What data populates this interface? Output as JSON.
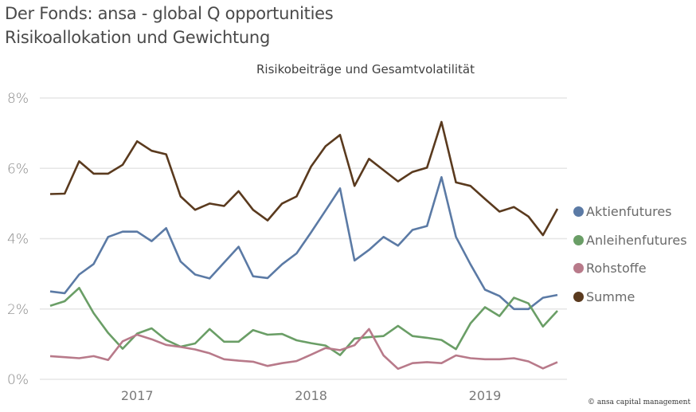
{
  "header": {
    "title_line1": "Der Fonds: ansa - global Q opportunities",
    "title_line2": "Risikoallokation und Gewichtung"
  },
  "footer": {
    "copyright": "© ansa capital management"
  },
  "chart_data": {
    "type": "line",
    "title": "Risikobeiträge und Gesamtvolatilität",
    "xlabel": "",
    "ylabel": "",
    "ylim": [
      0,
      8
    ],
    "y_ticks": [
      "0%",
      "2%",
      "4%",
      "6%",
      "8%"
    ],
    "y_tick_values": [
      0,
      2,
      4,
      6,
      8
    ],
    "x_ticks": [
      "2017",
      "2018",
      "2019"
    ],
    "x_tick_indices": [
      6,
      18,
      30
    ],
    "grid": true,
    "legend_position": "right",
    "x": [
      "2016-07",
      "2016-08",
      "2016-09",
      "2016-10",
      "2016-11",
      "2016-12",
      "2017-01",
      "2017-02",
      "2017-03",
      "2017-04",
      "2017-05",
      "2017-06",
      "2017-07",
      "2017-08",
      "2017-09",
      "2017-10",
      "2017-11",
      "2017-12",
      "2018-01",
      "2018-02",
      "2018-03",
      "2018-04",
      "2018-05",
      "2018-06",
      "2018-07",
      "2018-08",
      "2018-09",
      "2018-10",
      "2018-11",
      "2018-12",
      "2019-01",
      "2019-02",
      "2019-03",
      "2019-04",
      "2019-05",
      "2019-06"
    ],
    "series": [
      {
        "name": "Aktienfutures",
        "color": "#5b7aa5",
        "values": [
          2.5,
          2.45,
          2.98,
          3.28,
          4.05,
          4.2,
          4.2,
          3.93,
          4.3,
          3.35,
          2.98,
          2.87,
          3.32,
          3.77,
          2.93,
          2.88,
          3.27,
          3.58,
          4.18,
          4.8,
          5.43,
          3.38,
          3.68,
          4.05,
          3.8,
          4.25,
          4.36,
          5.75,
          4.05,
          3.27,
          2.55,
          2.37,
          2.0,
          2.0,
          2.32,
          2.4
        ]
      },
      {
        "name": "Anleihenfutures",
        "color": "#6a9e66",
        "values": [
          2.09,
          2.22,
          2.6,
          1.88,
          1.32,
          0.87,
          1.3,
          1.45,
          1.12,
          0.93,
          1.02,
          1.43,
          1.07,
          1.07,
          1.4,
          1.27,
          1.29,
          1.11,
          1.03,
          0.96,
          0.69,
          1.16,
          1.2,
          1.23,
          1.52,
          1.23,
          1.18,
          1.12,
          0.86,
          1.59,
          2.05,
          1.8,
          2.32,
          2.16,
          1.5,
          1.95
        ]
      },
      {
        "name": "Rohstoffe",
        "color": "#b87a8a",
        "values": [
          0.66,
          0.63,
          0.6,
          0.66,
          0.55,
          1.08,
          1.27,
          1.14,
          0.98,
          0.92,
          0.85,
          0.74,
          0.57,
          0.53,
          0.5,
          0.38,
          0.46,
          0.52,
          0.7,
          0.89,
          0.83,
          0.97,
          1.43,
          0.68,
          0.3,
          0.46,
          0.49,
          0.46,
          0.68,
          0.6,
          0.57,
          0.57,
          0.6,
          0.51,
          0.31,
          0.49
        ]
      },
      {
        "name": "Summe",
        "color": "#5a3a1e",
        "values": [
          5.27,
          5.28,
          6.2,
          5.85,
          5.85,
          6.1,
          6.77,
          6.5,
          6.4,
          5.2,
          4.82,
          5.0,
          4.93,
          5.35,
          4.82,
          4.52,
          5.0,
          5.2,
          6.05,
          6.63,
          6.95,
          5.5,
          6.27,
          5.95,
          5.63,
          5.9,
          6.02,
          7.32,
          5.6,
          5.5,
          5.13,
          4.77,
          4.9,
          4.63,
          4.1,
          4.85
        ]
      }
    ]
  }
}
